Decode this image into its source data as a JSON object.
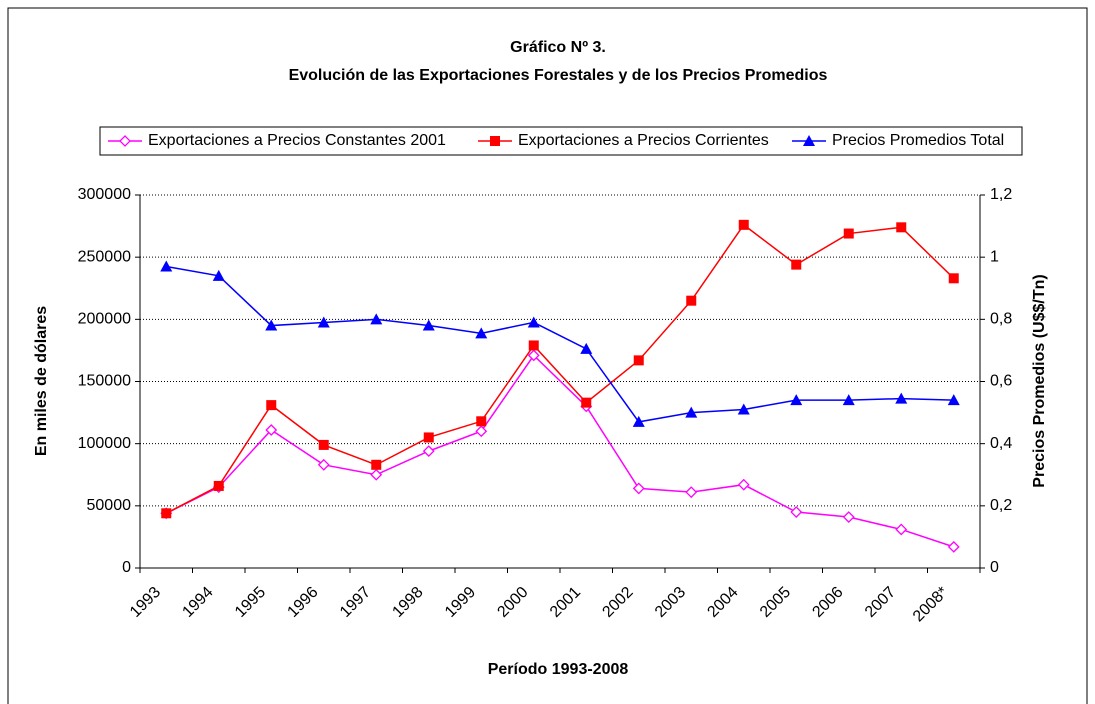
{
  "chart_data": {
    "type": "line",
    "title": "Gráfico Nº 3.",
    "subtitle": "Evolución de las Exportaciones Forestales y de los Precios Promedios",
    "x_label": "Período 1993-2008",
    "y_label": "En miles de dólares",
    "y2_label": "Precios Promedios (U$$/Tn)",
    "categories": [
      "1993",
      "1994",
      "1995",
      "1996",
      "1997",
      "1998",
      "1999",
      "2000",
      "2001",
      "2002",
      "2003",
      "2004",
      "2005",
      "2006",
      "2007",
      "2008*"
    ],
    "series": [
      {
        "name": "Exportaciones a Precios Constantes 2001",
        "color": "#ff00ff",
        "marker": "diamond",
        "values": [
          44000,
          65000,
          111000,
          83000,
          75000,
          94000,
          110000,
          171000,
          130000,
          64000,
          61000,
          67000,
          45000,
          41000,
          31000,
          17000
        ]
      },
      {
        "name": "Exportaciones a Precios Corrientes",
        "color": "#ff0000",
        "marker": "square",
        "values": [
          44000,
          66000,
          131000,
          99000,
          83000,
          105000,
          118000,
          179000,
          133000,
          167000,
          215000,
          276000,
          244000,
          269000,
          274000,
          233000
        ]
      },
      {
        "name": "Precios Promedios Total",
        "color": "#0000ff",
        "marker": "triangle",
        "axis": "y2",
        "values": [
          0.97,
          0.94,
          0.78,
          0.79,
          0.8,
          0.78,
          0.755,
          0.79,
          0.705,
          0.47,
          0.5,
          0.51,
          0.54,
          0.54,
          0.545,
          0.54
        ]
      }
    ],
    "ylim": [
      0,
      300000
    ],
    "yticks": [
      0,
      50000,
      100000,
      150000,
      200000,
      250000,
      300000
    ],
    "y2lim": [
      0,
      1.2
    ],
    "y2ticks": [
      0,
      {
        "value": 0.2,
        "label": "0,2"
      },
      {
        "value": 0.4,
        "label": "0,4"
      },
      {
        "value": 0.6,
        "label": "0,6"
      },
      {
        "value": 0.8,
        "label": "0,8"
      },
      1,
      {
        "value": 1.2,
        "label": "1,2"
      }
    ],
    "grid": true,
    "legend": "top"
  }
}
